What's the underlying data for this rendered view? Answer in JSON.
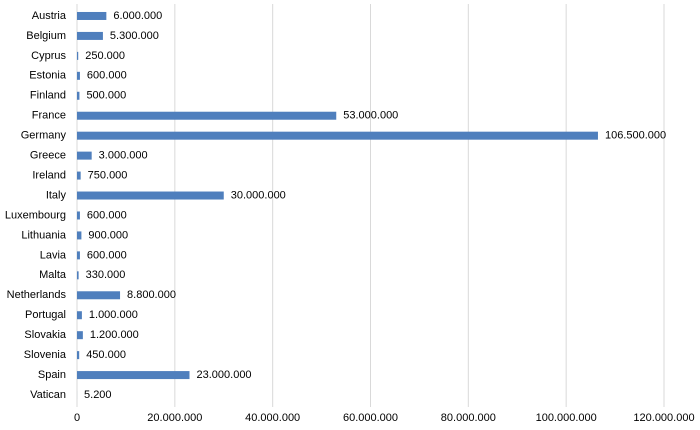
{
  "chart_data": {
    "type": "bar",
    "orientation": "horizontal",
    "categories": [
      "Austria",
      "Belgium",
      "Cyprus",
      "Estonia",
      "Finland",
      "France",
      "Germany",
      "Greece",
      "Ireland",
      "Italy",
      "Luxembourg",
      "Lithuania",
      "Lavia",
      "Malta",
      "Netherlands",
      "Portugal",
      "Slovakia",
      "Slovenia",
      "Spain",
      "Vatican"
    ],
    "values": [
      6000000,
      5300000,
      250000,
      600000,
      500000,
      53000000,
      106500000,
      3000000,
      750000,
      30000000,
      600000,
      900000,
      600000,
      330000,
      8800000,
      1000000,
      1200000,
      450000,
      23000000,
      5200
    ],
    "value_labels": [
      "6.000.000",
      "5.300.000",
      "250.000",
      "600.000",
      "500.000",
      "53.000.000",
      "106.500.000",
      "3.000.000",
      "750.000",
      "30.000.000",
      "600.000",
      "900.000",
      "600.000",
      "330.000",
      "8.800.000",
      "1.000.000",
      "1.200.000",
      "450.000",
      "23.000.000",
      "5.200"
    ],
    "color": "#4f7fbd",
    "xlim": [
      0,
      120000000
    ],
    "xticks": [
      0,
      {
        "value": 20000000,
        "label": "20.000.000"
      },
      {
        "value": 40000000,
        "label": "40.000.000"
      },
      {
        "value": 60000000,
        "label": "60.000.000"
      },
      {
        "value": 80000000,
        "label": "80.000.000"
      },
      {
        "value": 100000000,
        "label": "100.000.000"
      },
      {
        "value": 120000000,
        "label": "120.000.000"
      }
    ],
    "grid": true
  }
}
